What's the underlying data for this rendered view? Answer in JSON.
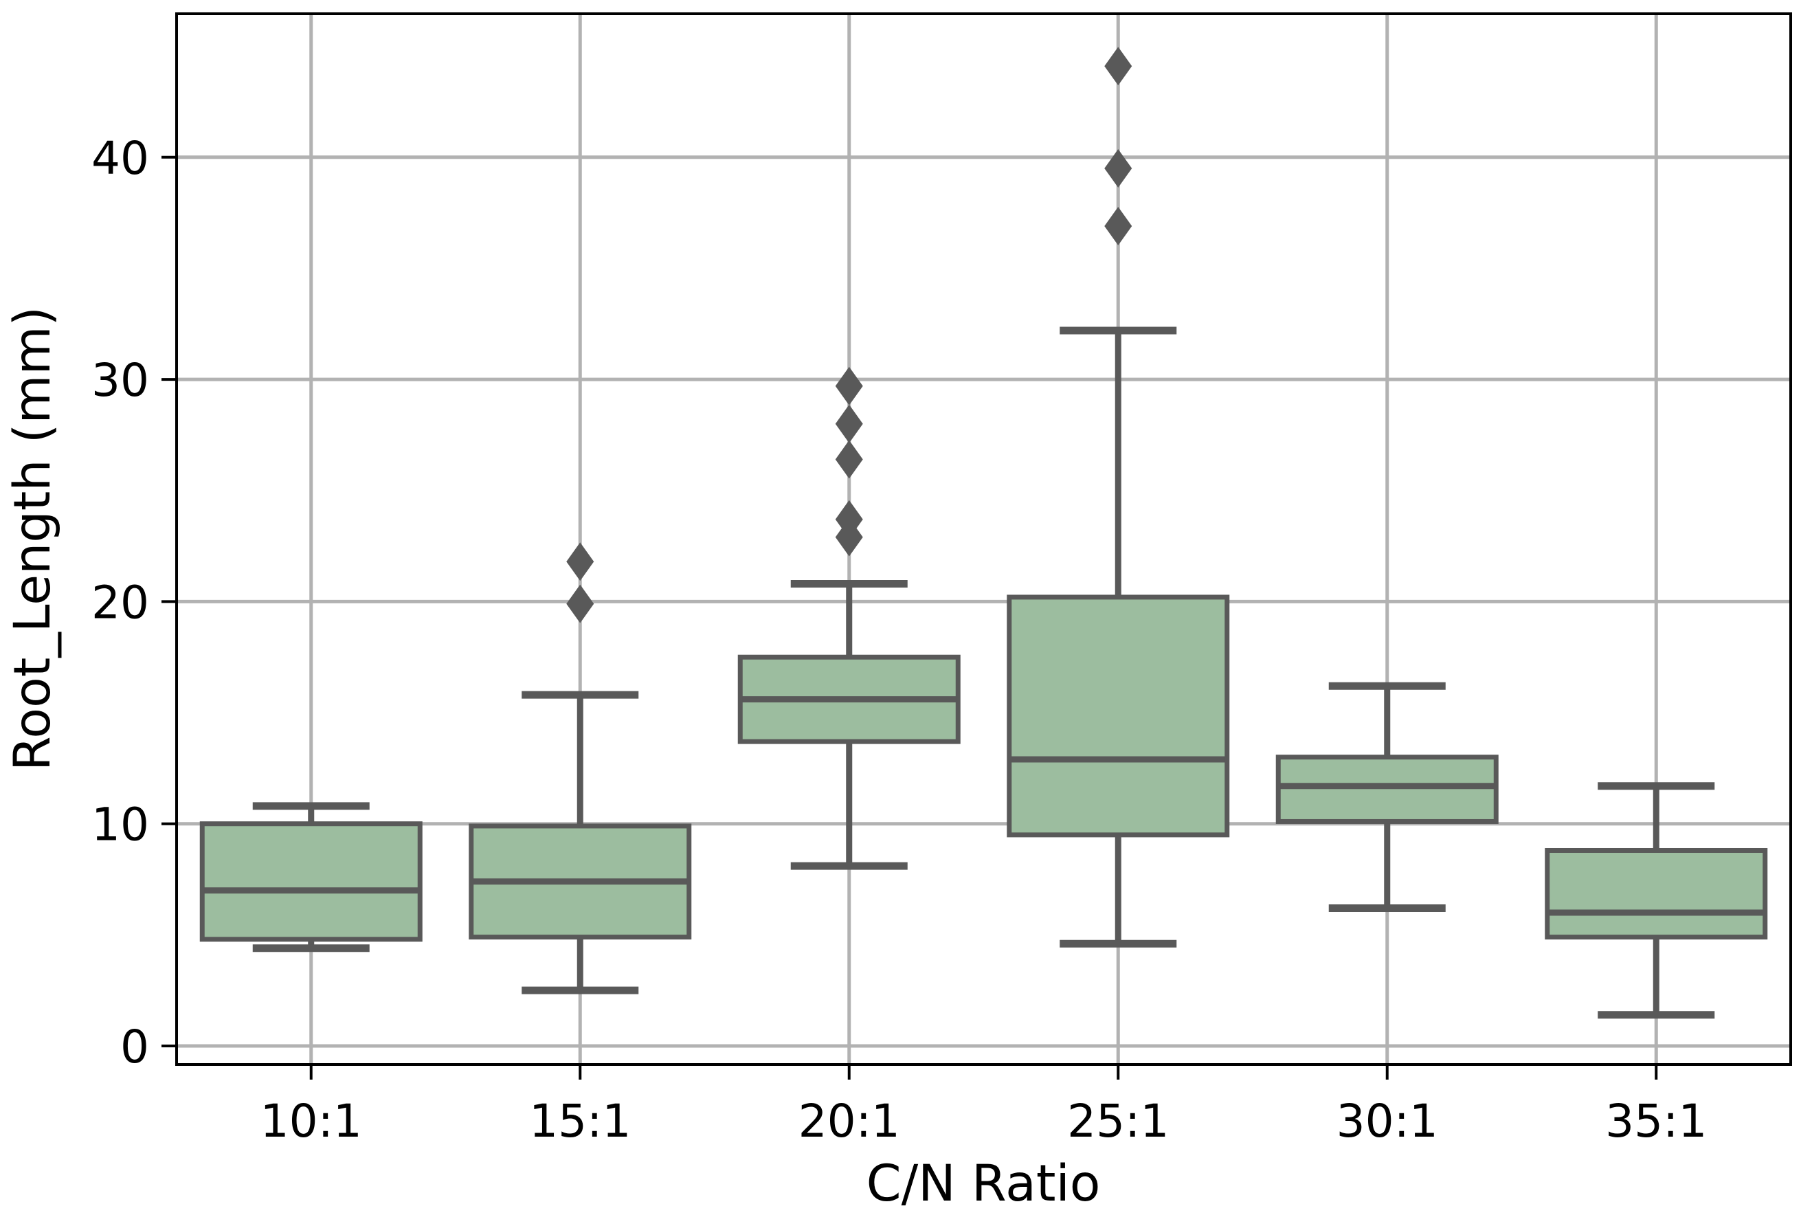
{
  "chart_data": {
    "type": "box",
    "title": "",
    "xlabel": "C/N Ratio",
    "ylabel": "Root_Length (mm)",
    "categories": [
      "10:1",
      "15:1",
      "20:1",
      "25:1",
      "30:1",
      "35:1"
    ],
    "yticks": [
      0,
      10,
      20,
      30,
      40
    ],
    "ylim": [
      -0.85,
      46.5
    ],
    "grid": true,
    "legend": "none",
    "boxes": [
      {
        "category": "10:1",
        "whislo": 4.4,
        "q1": 4.8,
        "med": 7.0,
        "q3": 10.0,
        "whishi": 10.8,
        "outliers": []
      },
      {
        "category": "15:1",
        "whislo": 2.5,
        "q1": 4.9,
        "med": 7.4,
        "q3": 9.9,
        "whishi": 15.8,
        "outliers": [
          19.9,
          21.8
        ]
      },
      {
        "category": "20:1",
        "whislo": 8.1,
        "q1": 13.7,
        "med": 15.6,
        "q3": 17.5,
        "whishi": 20.8,
        "outliers": [
          22.9,
          23.7,
          26.4,
          28.0,
          29.7
        ]
      },
      {
        "category": "25:1",
        "whislo": 4.6,
        "q1": 9.5,
        "med": 12.9,
        "q3": 20.2,
        "whishi": 32.2,
        "outliers": [
          36.9,
          39.5,
          44.1
        ]
      },
      {
        "category": "30:1",
        "whislo": 6.2,
        "q1": 10.1,
        "med": 11.7,
        "q3": 13.0,
        "whishi": 16.2,
        "outliers": []
      },
      {
        "category": "35:1",
        "whislo": 1.4,
        "q1": 4.9,
        "med": 6.0,
        "q3": 8.8,
        "whishi": 11.7,
        "outliers": []
      }
    ],
    "style": {
      "box_fill": "#9cbd9f",
      "line_color": "#595959",
      "grid_color": "#b2b2b2",
      "spine_color": "#000000",
      "text_color": "#000000",
      "background": "#ffffff"
    }
  }
}
